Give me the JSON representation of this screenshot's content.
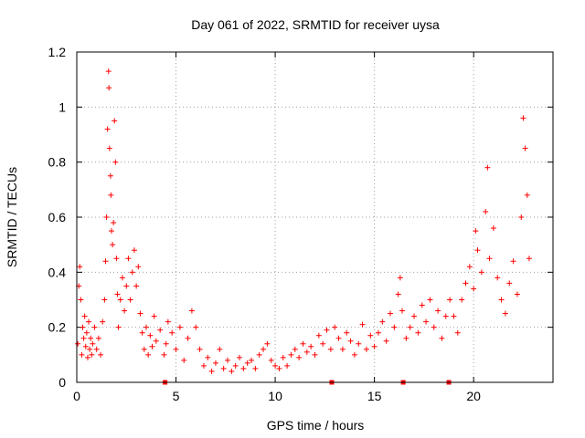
{
  "chart_data": {
    "type": "scatter",
    "title": "Day 061 of 2022, SRMTID for receiver uysa",
    "xlabel": "GPS time / hours",
    "ylabel": "SRMTID / TECUs",
    "xlim": [
      0,
      24
    ],
    "ylim": [
      0,
      1.2
    ],
    "x_ticks": [
      0,
      5,
      10,
      15,
      20
    ],
    "x_tick_labels": [
      "0",
      "5",
      "10",
      "15",
      "20"
    ],
    "y_ticks": [
      0,
      0.2,
      0.4,
      0.6,
      0.8,
      1.0,
      1.2
    ],
    "y_tick_labels": [
      "0",
      "0.2",
      "0.4",
      "0.6",
      "0.8",
      "1",
      "1.2"
    ],
    "grid": true,
    "marker": "+",
    "color": "#ff0000",
    "series": [
      {
        "name": "SRMTID",
        "points": [
          [
            0.05,
            0.14
          ],
          [
            0.1,
            0.35
          ],
          [
            0.15,
            0.42
          ],
          [
            0.2,
            0.3
          ],
          [
            0.25,
            0.1
          ],
          [
            0.3,
            0.2
          ],
          [
            0.35,
            0.16
          ],
          [
            0.4,
            0.24
          ],
          [
            0.45,
            0.13
          ],
          [
            0.5,
            0.18
          ],
          [
            0.55,
            0.09
          ],
          [
            0.6,
            0.22
          ],
          [
            0.65,
            0.12
          ],
          [
            0.7,
            0.16
          ],
          [
            0.75,
            0.1
          ],
          [
            0.8,
            0.14
          ],
          [
            0.9,
            0.2
          ],
          [
            1.0,
            0.12
          ],
          [
            1.1,
            0.16
          ],
          [
            1.2,
            0.1
          ],
          [
            1.3,
            0.22
          ],
          [
            1.4,
            0.3
          ],
          [
            1.45,
            0.44
          ],
          [
            1.5,
            0.6
          ],
          [
            1.55,
            0.92
          ],
          [
            1.6,
            1.13
          ],
          [
            1.62,
            1.07
          ],
          [
            1.65,
            0.85
          ],
          [
            1.7,
            0.75
          ],
          [
            1.72,
            0.68
          ],
          [
            1.75,
            0.55
          ],
          [
            1.8,
            0.5
          ],
          [
            1.85,
            0.58
          ],
          [
            1.9,
            0.95
          ],
          [
            1.95,
            0.8
          ],
          [
            2.0,
            0.45
          ],
          [
            2.05,
            0.32
          ],
          [
            2.1,
            0.2
          ],
          [
            2.2,
            0.3
          ],
          [
            2.3,
            0.38
          ],
          [
            2.4,
            0.26
          ],
          [
            2.5,
            0.35
          ],
          [
            2.6,
            0.45
          ],
          [
            2.7,
            0.3
          ],
          [
            2.8,
            0.4
          ],
          [
            2.9,
            0.48
          ],
          [
            3.0,
            0.35
          ],
          [
            3.1,
            0.42
          ],
          [
            3.2,
            0.25
          ],
          [
            3.3,
            0.18
          ],
          [
            3.4,
            0.12
          ],
          [
            3.5,
            0.2
          ],
          [
            3.6,
            0.1
          ],
          [
            3.7,
            0.17
          ],
          [
            3.8,
            0.13
          ],
          [
            3.9,
            0.24
          ],
          [
            4.0,
            0.15
          ],
          [
            4.2,
            0.19
          ],
          [
            4.4,
            0.1
          ],
          [
            4.5,
            0.14
          ],
          [
            4.6,
            0.22
          ],
          [
            4.8,
            0.18
          ],
          [
            5.0,
            0.12
          ],
          [
            5.2,
            0.2
          ],
          [
            5.4,
            0.08
          ],
          [
            5.6,
            0.16
          ],
          [
            5.8,
            0.26
          ],
          [
            6.0,
            0.2
          ],
          [
            6.2,
            0.12
          ],
          [
            6.4,
            0.06
          ],
          [
            6.6,
            0.09
          ],
          [
            6.8,
            0.04
          ],
          [
            7.0,
            0.07
          ],
          [
            7.2,
            0.12
          ],
          [
            7.4,
            0.05
          ],
          [
            7.6,
            0.08
          ],
          [
            7.8,
            0.04
          ],
          [
            8.0,
            0.06
          ],
          [
            8.2,
            0.09
          ],
          [
            8.4,
            0.05
          ],
          [
            8.6,
            0.07
          ],
          [
            8.8,
            0.08
          ],
          [
            9.0,
            0.05
          ],
          [
            9.2,
            0.1
          ],
          [
            9.4,
            0.12
          ],
          [
            9.6,
            0.14
          ],
          [
            9.8,
            0.08
          ],
          [
            10.0,
            0.06
          ],
          [
            10.2,
            0.05
          ],
          [
            10.4,
            0.09
          ],
          [
            10.6,
            0.06
          ],
          [
            10.8,
            0.1
          ],
          [
            11.0,
            0.12
          ],
          [
            11.2,
            0.09
          ],
          [
            11.4,
            0.14
          ],
          [
            11.6,
            0.11
          ],
          [
            11.8,
            0.13
          ],
          [
            12.0,
            0.1
          ],
          [
            12.2,
            0.17
          ],
          [
            12.4,
            0.14
          ],
          [
            12.6,
            0.19
          ],
          [
            12.8,
            0.12
          ],
          [
            13.0,
            0.2
          ],
          [
            13.2,
            0.16
          ],
          [
            13.4,
            0.12
          ],
          [
            13.6,
            0.18
          ],
          [
            13.8,
            0.15
          ],
          [
            14.0,
            0.1
          ],
          [
            14.2,
            0.14
          ],
          [
            14.4,
            0.21
          ],
          [
            14.6,
            0.12
          ],
          [
            14.8,
            0.17
          ],
          [
            15.0,
            0.13
          ],
          [
            15.2,
            0.18
          ],
          [
            15.4,
            0.22
          ],
          [
            15.6,
            0.15
          ],
          [
            15.8,
            0.25
          ],
          [
            16.0,
            0.2
          ],
          [
            16.2,
            0.32
          ],
          [
            16.3,
            0.38
          ],
          [
            16.4,
            0.26
          ],
          [
            16.6,
            0.16
          ],
          [
            16.8,
            0.2
          ],
          [
            17.0,
            0.24
          ],
          [
            17.2,
            0.18
          ],
          [
            17.4,
            0.28
          ],
          [
            17.6,
            0.22
          ],
          [
            17.8,
            0.3
          ],
          [
            18.0,
            0.2
          ],
          [
            18.2,
            0.26
          ],
          [
            18.4,
            0.16
          ],
          [
            18.6,
            0.24
          ],
          [
            18.8,
            0.3
          ],
          [
            19.0,
            0.24
          ],
          [
            19.2,
            0.18
          ],
          [
            19.4,
            0.3
          ],
          [
            19.6,
            0.36
          ],
          [
            19.8,
            0.42
          ],
          [
            20.0,
            0.34
          ],
          [
            20.1,
            0.55
          ],
          [
            20.2,
            0.48
          ],
          [
            20.4,
            0.4
          ],
          [
            20.6,
            0.62
          ],
          [
            20.7,
            0.78
          ],
          [
            20.8,
            0.45
          ],
          [
            21.0,
            0.56
          ],
          [
            21.2,
            0.38
          ],
          [
            21.4,
            0.3
          ],
          [
            21.6,
            0.25
          ],
          [
            21.8,
            0.36
          ],
          [
            22.0,
            0.44
          ],
          [
            22.2,
            0.32
          ],
          [
            22.4,
            0.6
          ],
          [
            22.5,
            0.96
          ],
          [
            22.6,
            0.85
          ],
          [
            22.7,
            0.68
          ],
          [
            22.8,
            0.45
          ]
        ]
      }
    ],
    "gap_markers_x": [
      4.45,
      12.85,
      16.45,
      18.75
    ]
  }
}
